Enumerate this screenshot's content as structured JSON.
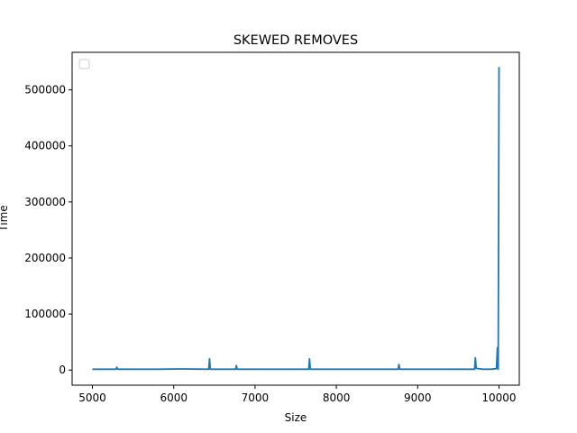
{
  "chart_data": {
    "type": "line",
    "title": "SKEWED REMOVES",
    "xlabel": "Size",
    "ylabel": "Time",
    "xlim": [
      4750,
      10250
    ],
    "ylim": [
      -27000,
      567000
    ],
    "xticks": [
      5000,
      6000,
      7000,
      8000,
      9000,
      10000
    ],
    "yticks": [
      0,
      100000,
      200000,
      300000,
      400000,
      500000
    ],
    "xtick_labels": [
      "5000",
      "6000",
      "7000",
      "8000",
      "9000",
      "10000"
    ],
    "ytick_labels": [
      "0",
      "100000",
      "200000",
      "300000",
      "400000",
      "500000"
    ],
    "grid": false,
    "legend": {
      "placement": "upper-left",
      "entries": []
    },
    "series": [
      {
        "color": "#1f77b4",
        "x": [
          5000,
          5290,
          5300,
          5310,
          5400,
          5800,
          6100,
          6430,
          6440,
          6450,
          6760,
          6770,
          6780,
          7000,
          7660,
          7670,
          7680,
          8000,
          8500,
          8760,
          8770,
          8780,
          9200,
          9700,
          9710,
          9720,
          9800,
          9900,
          9970,
          9980,
          9990,
          10000
        ],
        "y": [
          1500,
          1500,
          5000,
          1500,
          1500,
          1500,
          2000,
          1500,
          20000,
          1500,
          1500,
          8000,
          1500,
          1500,
          1500,
          20000,
          1500,
          1500,
          1500,
          1500,
          10000,
          1500,
          1500,
          1500,
          22000,
          3000,
          1500,
          1500,
          2500,
          40000,
          1500,
          541000
        ]
      }
    ]
  },
  "colors": {
    "axes": "#000000",
    "background": "#ffffff",
    "line": "#1f77b4"
  }
}
